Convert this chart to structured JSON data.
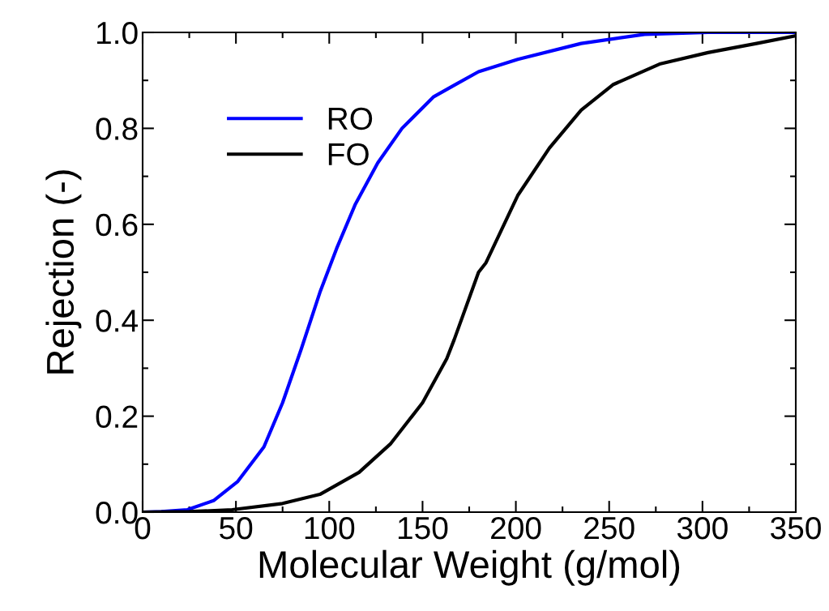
{
  "chart_data": {
    "type": "line",
    "xlabel": "Molecular Weight (g/mol)",
    "ylabel": "Rejection (-)",
    "xlim": [
      0,
      350
    ],
    "ylim": [
      0,
      1
    ],
    "xticks": [
      0,
      50,
      100,
      150,
      200,
      250,
      300,
      350
    ],
    "yticks": [
      {
        "value": 0,
        "label": "0.0"
      },
      {
        "value": 0.2,
        "label": "0.2"
      },
      {
        "value": 0.4,
        "label": "0.4"
      },
      {
        "value": 0.6,
        "label": "0.6"
      },
      {
        "value": 0.8,
        "label": "0.8"
      },
      {
        "value": 1.0,
        "label": "1.0"
      }
    ],
    "legend": "top left",
    "grid": false,
    "marker": "none",
    "line_style": "solid",
    "series": [
      {
        "name": "RO",
        "color": "#0000ff",
        "x": [
          0,
          10,
          24,
          38,
          51,
          65,
          75,
          85,
          95,
          104,
          114,
          126,
          139,
          156,
          167,
          180,
          201,
          235,
          269,
          303,
          350
        ],
        "values": [
          0,
          0.001,
          0.005,
          0.024,
          0.064,
          0.136,
          0.228,
          0.34,
          0.458,
          0.55,
          0.642,
          0.728,
          0.8,
          0.866,
          0.89,
          0.918,
          0.944,
          0.977,
          0.996,
          1.0,
          1.0
        ]
      },
      {
        "name": "FO",
        "color": "#000000",
        "x": [
          0,
          25,
          48,
          75,
          95,
          116,
          133,
          150,
          163,
          167,
          180,
          184,
          201,
          218,
          235,
          252,
          277,
          303,
          329,
          350
        ],
        "values": [
          0,
          0.001,
          0.005,
          0.018,
          0.037,
          0.083,
          0.143,
          0.228,
          0.32,
          0.36,
          0.5,
          0.52,
          0.66,
          0.759,
          0.838,
          0.891,
          0.934,
          0.958,
          0.977,
          0.993
        ]
      }
    ]
  }
}
